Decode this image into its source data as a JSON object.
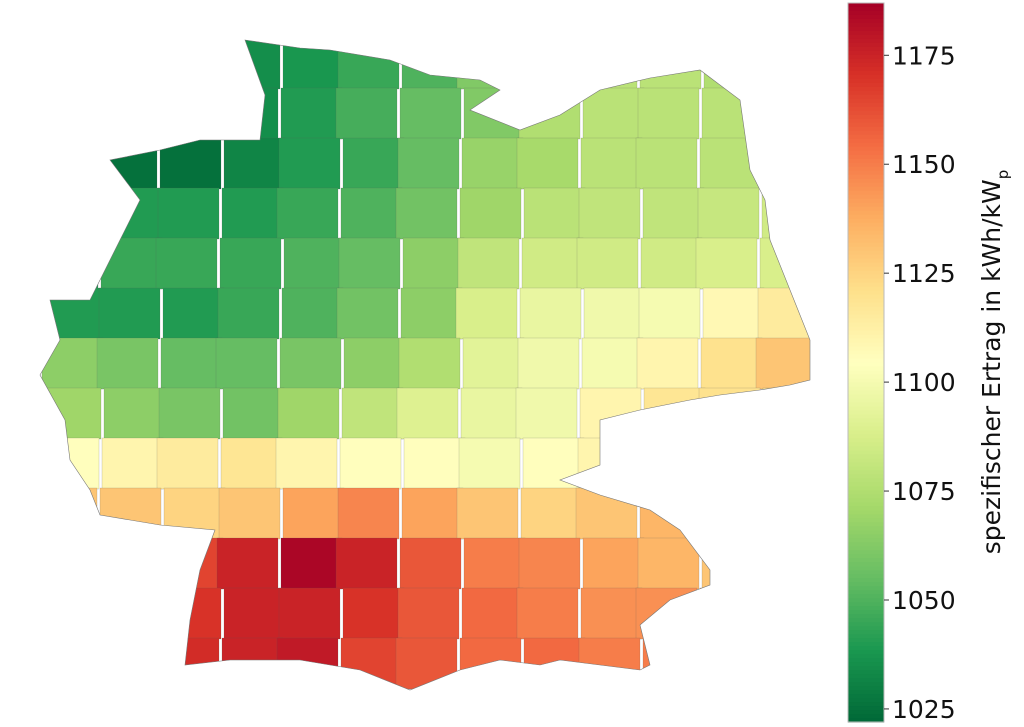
{
  "chart_data": {
    "type": "heatmap",
    "subtype": "choropleth map of Germany",
    "colormap": "RdYlGn reversed (green = low, red = high)",
    "colorbar": {
      "label": "spezifischer Ertrag in kWh/kW",
      "label_subscript": "p",
      "ticks": [
        "1025",
        "1050",
        "1075",
        "1100",
        "1125",
        "1150",
        "1175"
      ],
      "range": [
        1022,
        1187
      ],
      "position": "right"
    },
    "approx_grid_values_north_to_south_west_to_east": [
      [
        1040,
        1040,
        1035,
        1035,
        1038,
        1045,
        1050,
        1062,
        1075,
        1078,
        1078,
        1075,
        1075
      ],
      [
        1030,
        1028,
        1028,
        1035,
        1040,
        1048,
        1055,
        1062,
        1075,
        1078,
        1078,
        1078,
        1078
      ],
      [
        1028,
        1025,
        1025,
        1032,
        1040,
        1045,
        1055,
        1068,
        1072,
        1078,
        1078,
        1078,
        1078
      ],
      [
        1035,
        1040,
        1040,
        1040,
        1045,
        1050,
        1058,
        1070,
        1078,
        1080,
        1080,
        1082,
        1085
      ],
      [
        1040,
        1045,
        1045,
        1045,
        1050,
        1055,
        1065,
        1080,
        1085,
        1085,
        1085,
        1088,
        1088
      ],
      [
        1040,
        1040,
        1040,
        1045,
        1050,
        1058,
        1065,
        1088,
        1095,
        1098,
        1100,
        1108,
        1115
      ],
      [
        1065,
        1060,
        1055,
        1055,
        1060,
        1065,
        1075,
        1092,
        1098,
        1100,
        1110,
        1120,
        1130
      ],
      [
        1070,
        1065,
        1060,
        1058,
        1070,
        1080,
        1090,
        1095,
        1098,
        1110,
        1118,
        1120,
        1120
      ],
      [
        1105,
        1110,
        1115,
        1118,
        1110,
        1105,
        1105,
        1100,
        1105,
        1110,
        1115,
        1115,
        1115
      ],
      [
        1130,
        1130,
        1125,
        1130,
        1140,
        1148,
        1140,
        1130,
        1125,
        1130,
        1135,
        1140,
        1140
      ],
      [
        1150,
        1160,
        1165,
        1175,
        1185,
        1175,
        1160,
        1150,
        1148,
        1140,
        1135,
        1130,
        1130
      ],
      [
        1165,
        1165,
        1170,
        1175,
        1175,
        1170,
        1160,
        1155,
        1150,
        1145,
        1145,
        1140,
        1140
      ],
      [
        1165,
        1168,
        1172,
        1175,
        1178,
        1165,
        1160,
        1155,
        1155,
        1150,
        1150,
        1150,
        1150
      ]
    ]
  }
}
